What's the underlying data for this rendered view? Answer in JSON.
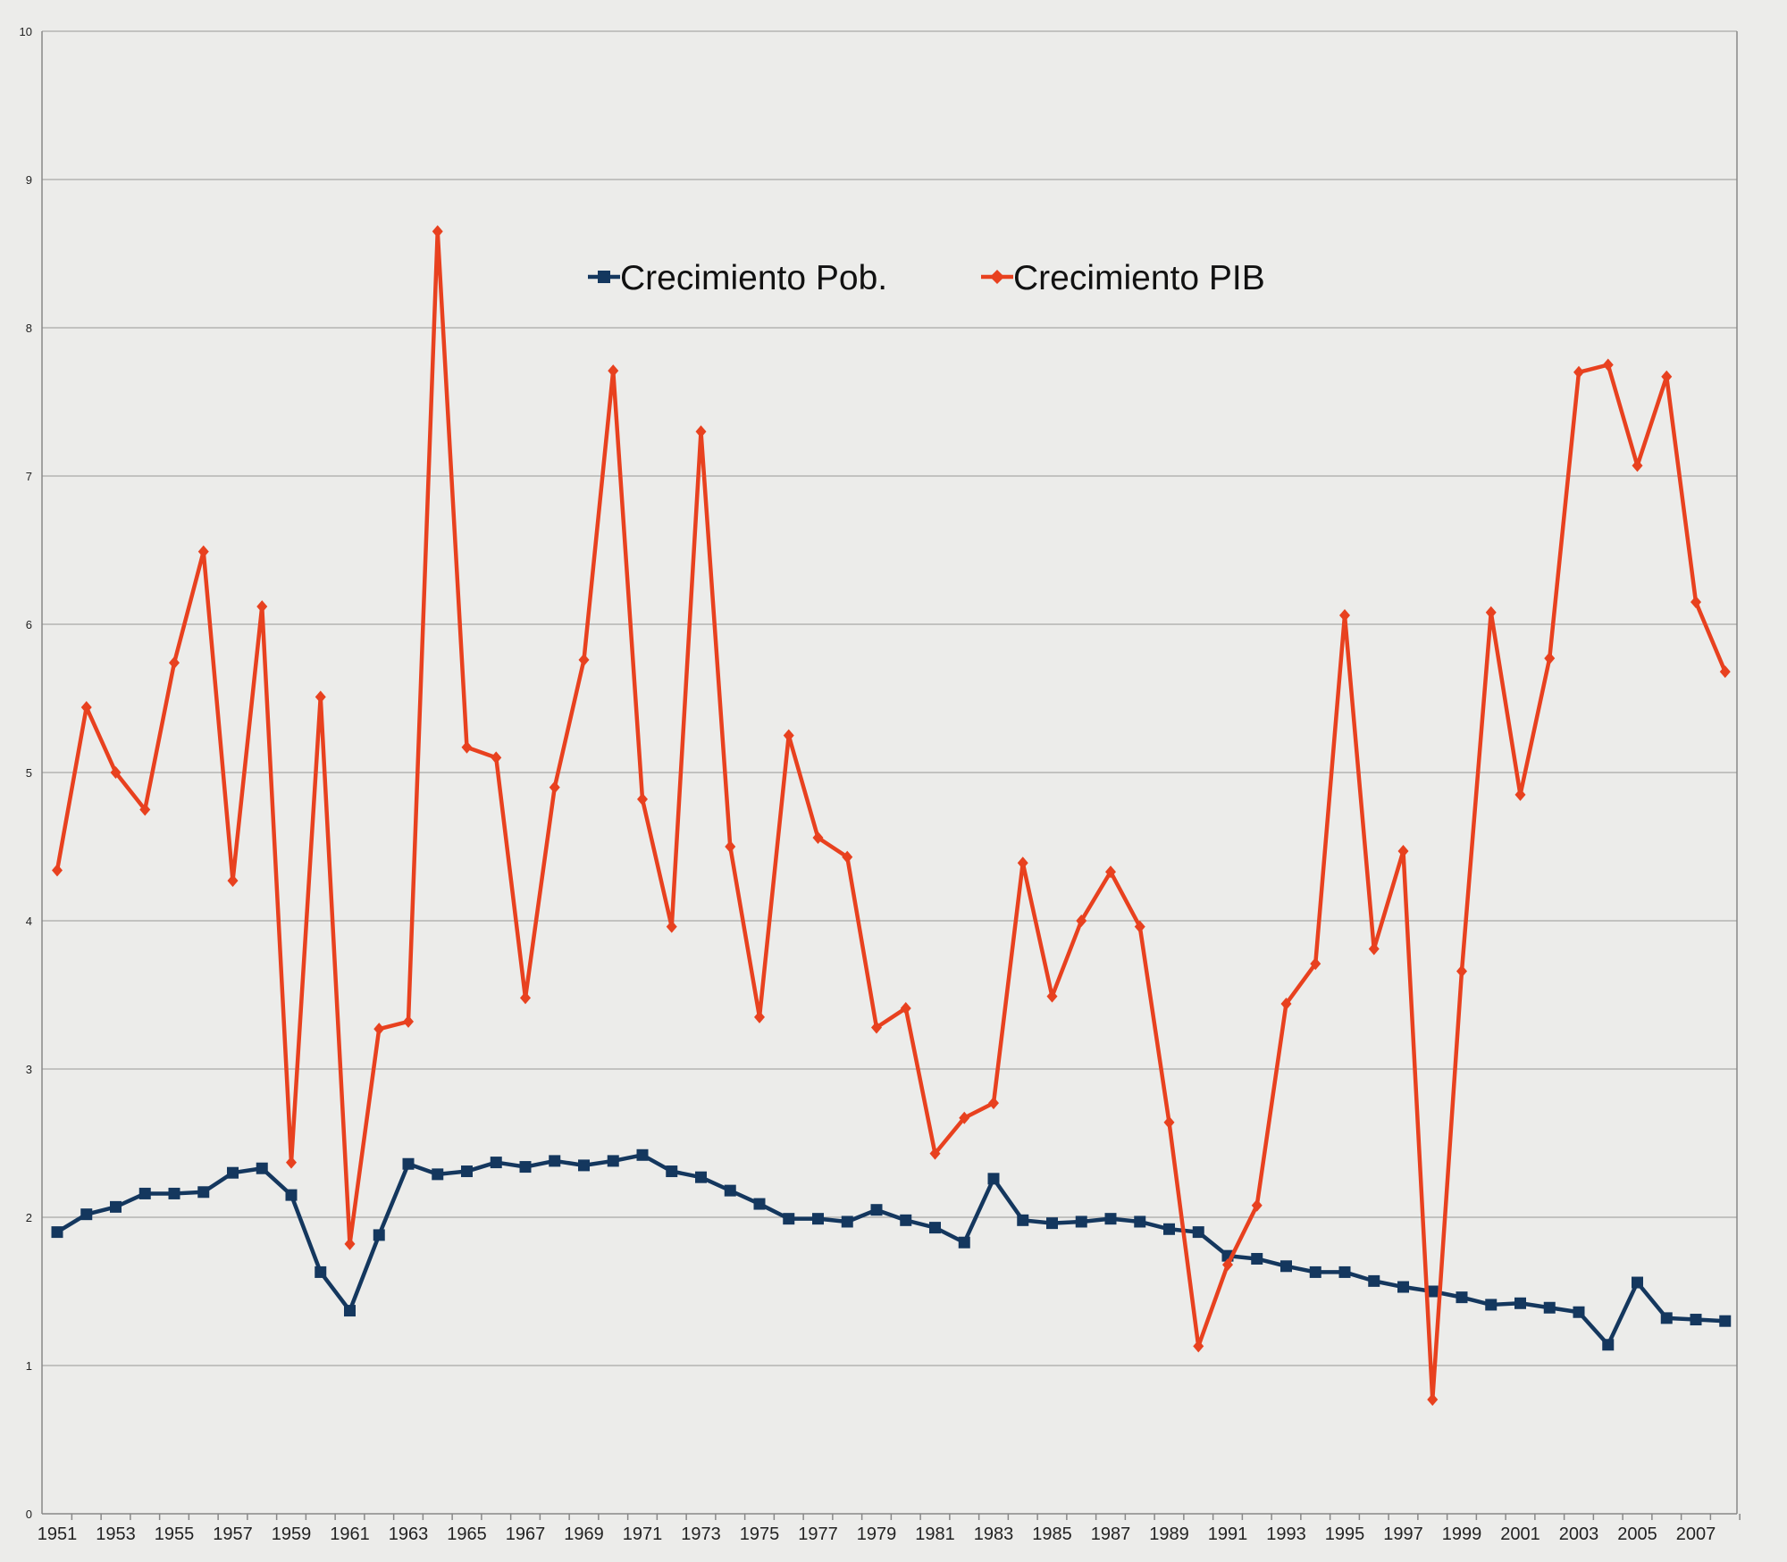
{
  "chart_data": {
    "type": "line",
    "title": "",
    "xlabel": "",
    "ylabel": "",
    "ylim": [
      0,
      10
    ],
    "yticks": [
      0,
      1,
      2,
      3,
      4,
      5,
      6,
      7,
      8,
      9,
      10
    ],
    "grid": true,
    "legend_position": "top-center",
    "x": [
      1951,
      1952,
      1953,
      1954,
      1955,
      1956,
      1957,
      1958,
      1959,
      1960,
      1961,
      1962,
      1963,
      1964,
      1965,
      1966,
      1967,
      1968,
      1969,
      1970,
      1971,
      1972,
      1973,
      1974,
      1975,
      1976,
      1977,
      1978,
      1979,
      1980,
      1981,
      1982,
      1983,
      1984,
      1985,
      1986,
      1987,
      1988,
      1989,
      1990,
      1991,
      1992,
      1993,
      1994,
      1995,
      1996,
      1997,
      1998,
      1999,
      2000,
      2001,
      2002,
      2003,
      2004,
      2005,
      2006,
      2007,
      2008
    ],
    "x_tick_labels": [
      "1951",
      "1953",
      "1955",
      "1957",
      "1959",
      "1961",
      "1963",
      "1965",
      "1967",
      "1969",
      "1971",
      "1973",
      "1975",
      "1977",
      "1979",
      "1981",
      "1983",
      "1985",
      "1987",
      "1989",
      "1991",
      "1993",
      "1995",
      "1997",
      "1999",
      "2001",
      "2003",
      "2005",
      "2007"
    ],
    "series": [
      {
        "name": "Crecimiento Pob.",
        "color": "#14375e",
        "marker": "square",
        "values": [
          1.9,
          2.02,
          2.07,
          2.16,
          2.16,
          2.17,
          2.3,
          2.33,
          2.15,
          1.63,
          1.37,
          1.88,
          2.36,
          2.29,
          2.31,
          2.37,
          2.34,
          2.38,
          2.35,
          2.38,
          2.42,
          2.31,
          2.27,
          2.18,
          2.09,
          1.99,
          1.99,
          1.97,
          2.05,
          1.98,
          1.93,
          1.83,
          2.26,
          1.98,
          1.96,
          1.97,
          1.99,
          1.97,
          1.92,
          1.9,
          1.74,
          1.72,
          1.67,
          1.63,
          1.63,
          1.57,
          1.53,
          1.5,
          1.46,
          1.41,
          1.42,
          1.39,
          1.36,
          1.14,
          1.56,
          1.32,
          1.31,
          1.3
        ]
      },
      {
        "name": "Crecimiento PIB",
        "color": "#e8411f",
        "marker": "diamond",
        "values": [
          4.34,
          5.44,
          5.0,
          4.75,
          5.74,
          6.49,
          4.27,
          6.12,
          2.37,
          5.51,
          1.82,
          3.27,
          3.32,
          8.65,
          5.17,
          5.1,
          3.48,
          4.9,
          5.76,
          7.71,
          4.82,
          3.96,
          7.3,
          4.5,
          3.35,
          5.25,
          4.56,
          4.43,
          3.28,
          3.41,
          2.43,
          2.67,
          2.77,
          4.39,
          3.49,
          4.0,
          4.33,
          3.96,
          2.64,
          1.13,
          1.68,
          2.08,
          3.44,
          3.71,
          6.06,
          3.81,
          4.47,
          0.77,
          3.66,
          6.08,
          4.85,
          5.77,
          7.7,
          7.75,
          7.07,
          7.67,
          6.15,
          5.68
        ]
      }
    ]
  }
}
